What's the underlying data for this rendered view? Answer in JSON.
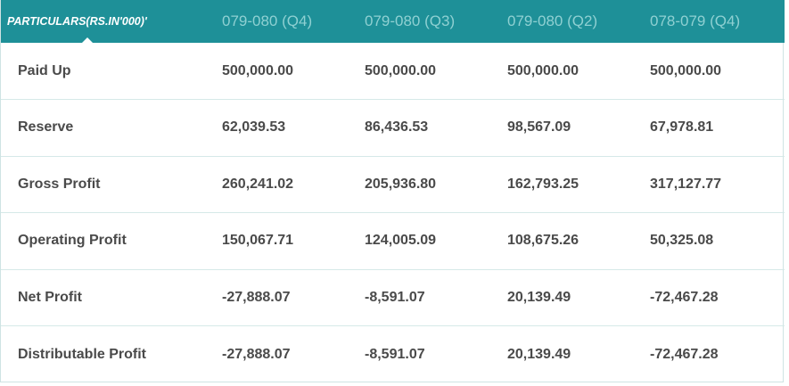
{
  "table": {
    "headers": [
      "PARTICULARS(RS.IN'000)'",
      "079-080 (Q4)",
      "079-080 (Q3)",
      "079-080 (Q2)",
      "078-079 (Q4)"
    ],
    "rows": [
      {
        "label": "Paid Up",
        "values": [
          "500,000.00",
          "500,000.00",
          "500,000.00",
          "500,000.00"
        ]
      },
      {
        "label": "Reserve",
        "values": [
          "62,039.53",
          "86,436.53",
          "98,567.09",
          "67,978.81"
        ]
      },
      {
        "label": "Gross Profit",
        "values": [
          "260,241.02",
          "205,936.80",
          "162,793.25",
          "317,127.77"
        ]
      },
      {
        "label": "Operating Profit",
        "values": [
          "150,067.71",
          "124,005.09",
          "108,675.26",
          "50,325.08"
        ]
      },
      {
        "label": "Net Profit",
        "values": [
          "-27,888.07",
          "-8,591.07",
          "20,139.49",
          "-72,467.28"
        ]
      },
      {
        "label": "Distributable Profit",
        "values": [
          "-27,888.07",
          "-8,591.07",
          "20,139.49",
          "-72,467.28"
        ]
      }
    ]
  },
  "colors": {
    "header_bg": "#1e9098",
    "header_text_inactive": "#8fd0d2",
    "header_text_active": "#ffffff",
    "row_divider": "#d6e9e8",
    "cell_text": "#4a4a4a"
  }
}
